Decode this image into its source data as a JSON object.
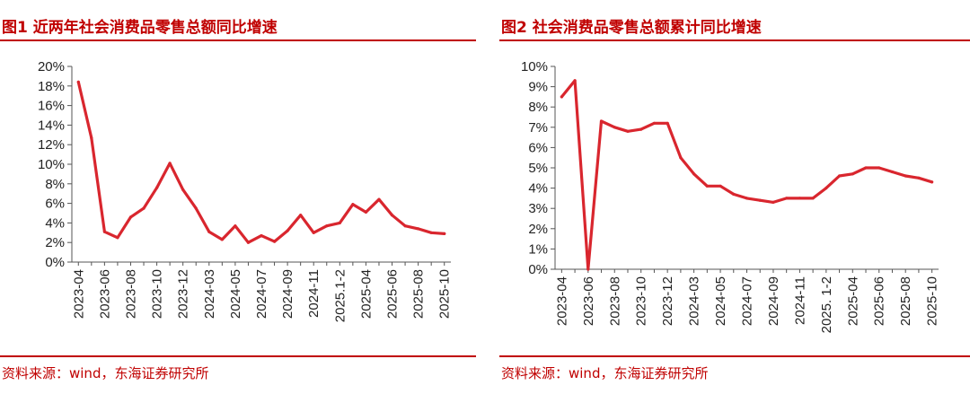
{
  "charts": [
    {
      "title": "图1 近两年社会消费品零售总额同比增速",
      "source": "资料来源：wind，东海证券研究所",
      "chart_data": {
        "type": "line",
        "title": "图1 近两年社会消费品零售总额同比增速",
        "xlabel": "",
        "ylabel": "",
        "ylim": [
          0,
          20
        ],
        "y_ticks": [
          "0%",
          "2%",
          "4%",
          "6%",
          "8%",
          "10%",
          "12%",
          "14%",
          "16%",
          "18%",
          "20%"
        ],
        "x_tick_labels": [
          "2023-04",
          "2023-06",
          "2023-08",
          "2023-10",
          "2023-12",
          "2024-03",
          "2024-05",
          "2024-07",
          "2024-09",
          "2024-11",
          "2025.1-2",
          "2025-04",
          "2025-06",
          "2025-08",
          "2025-10"
        ],
        "grid": false,
        "legend": "none",
        "line_color": "#d9262e",
        "categories": [
          "2023-04",
          "2023-05",
          "2023-06",
          "2023-07",
          "2023-08",
          "2023-09",
          "2023-10",
          "2023-11",
          "2023-12",
          "2024-01",
          "2024-03",
          "2024-04",
          "2024-05",
          "2024-06",
          "2024-07",
          "2024-08",
          "2024-09",
          "2024-10",
          "2024-11",
          "2024-12",
          "2025.1-2",
          "2025-03",
          "2025-04",
          "2025-05",
          "2025-06",
          "2025-07",
          "2025-08",
          "2025-09",
          "2025-10"
        ],
        "series": [
          {
            "values": [
              18.4,
              12.7,
              3.1,
              2.5,
              4.6,
              5.5,
              7.6,
              10.1,
              7.4,
              5.5,
              3.1,
              2.3,
              3.7,
              2.0,
              2.7,
              2.1,
              3.2,
              4.8,
              3.0,
              3.7,
              4.0,
              5.9,
              5.1,
              6.4,
              4.8,
              3.7,
              3.4,
              3.0,
              2.9
            ]
          }
        ]
      }
    },
    {
      "title": "图2 社会消费品零售总额累计同比增速",
      "source": "资料来源：wind，东海证券研究所",
      "chart_data": {
        "type": "line",
        "title": "图2 社会消费品零售总额累计同比增速",
        "xlabel": "",
        "ylabel": "",
        "ylim": [
          0,
          10
        ],
        "y_ticks": [
          "0%",
          "1%",
          "2%",
          "3%",
          "4%",
          "5%",
          "6%",
          "7%",
          "8%",
          "9%",
          "10%"
        ],
        "x_tick_labels": [
          "2023-04",
          "2023-06",
          "2023-08",
          "2023-10",
          "2023-12",
          "2024-03",
          "2024-05",
          "2024-07",
          "2024-09",
          "2024-11",
          "2025. 1-2",
          "2025-04",
          "2025-06",
          "2025-08",
          "2025-10"
        ],
        "grid": false,
        "legend": "none",
        "line_color": "#d9262e",
        "categories": [
          "2023-04",
          "2023-05",
          "2023-06",
          "2023-07",
          "2023-08",
          "2023-09",
          "2023-10",
          "2023-11",
          "2023-12",
          "2024-01",
          "2024-03",
          "2024-04",
          "2024-05",
          "2024-06",
          "2024-07",
          "2024-08",
          "2024-09",
          "2024-10",
          "2024-11",
          "2024-12",
          "2025. 1-2",
          "2025-03",
          "2025-04",
          "2025-05",
          "2025-06",
          "2025-07",
          "2025-08",
          "2025-09",
          "2025-10"
        ],
        "series": [
          {
            "values": [
              8.5,
              9.3,
              0.0,
              7.3,
              7.0,
              6.8,
              6.9,
              7.2,
              7.2,
              5.5,
              4.7,
              4.1,
              4.1,
              3.7,
              3.5,
              3.4,
              3.3,
              3.5,
              3.5,
              3.5,
              4.0,
              4.6,
              4.7,
              5.0,
              5.0,
              4.8,
              4.6,
              4.5,
              4.3
            ]
          }
        ]
      }
    }
  ]
}
